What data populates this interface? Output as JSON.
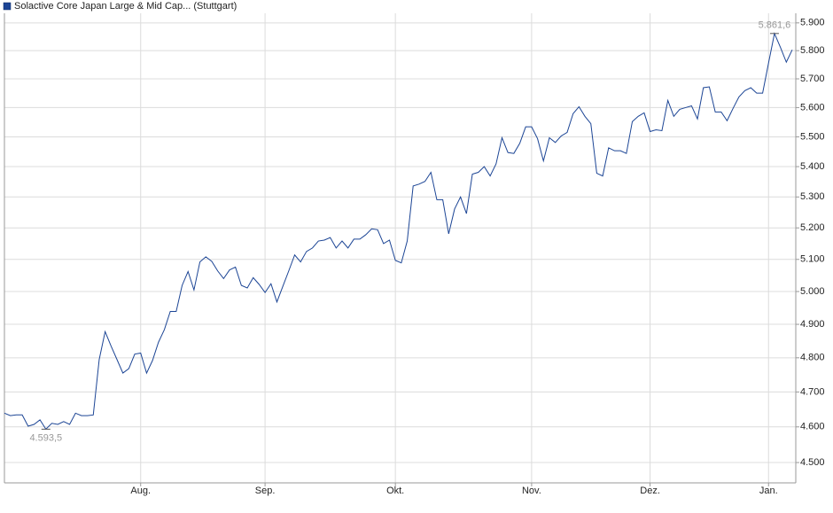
{
  "chart_data": {
    "type": "line",
    "log_scale": true,
    "grid": true,
    "legend_position": "top-left",
    "series": [
      {
        "name": "Solactive Core Japan Large & Mid Cap... (Stuttgart)",
        "color": "#1c4595",
        "values": [
          4639,
          4632,
          4634,
          4634,
          4602,
          4607,
          4620,
          4593.5,
          4610,
          4607,
          4615,
          4607,
          4639,
          4632,
          4632,
          4634,
          4795,
          4878,
          4835,
          4795,
          4755,
          4768,
          4811,
          4814,
          4755,
          4792,
          4846,
          4884,
          4939,
          4939,
          5019,
          5062,
          5005,
          5092,
          5108,
          5094,
          5064,
          5040,
          5067,
          5076,
          5019,
          5011,
          5043,
          5022,
          4997,
          5024,
          4968,
          5016,
          5064,
          5114,
          5092,
          5125,
          5136,
          5158,
          5161,
          5169,
          5136,
          5158,
          5136,
          5164,
          5164,
          5178,
          5197,
          5194,
          5150,
          5161,
          5097,
          5089,
          5158,
          5336,
          5342,
          5351,
          5381,
          5291,
          5291,
          5181,
          5261,
          5300,
          5246,
          5375,
          5381,
          5400,
          5369,
          5409,
          5497,
          5447,
          5444,
          5478,
          5534,
          5534,
          5494,
          5419,
          5497,
          5481,
          5503,
          5515,
          5579,
          5603,
          5570,
          5545,
          5378,
          5369,
          5463,
          5453,
          5453,
          5444,
          5552,
          5570,
          5582,
          5518,
          5524,
          5521,
          5625,
          5570,
          5594,
          5600,
          5606,
          5561,
          5669,
          5672,
          5585,
          5585,
          5555,
          5597,
          5637,
          5659,
          5669,
          5650,
          5650,
          5756,
          5861.6,
          5812,
          5759,
          5803
        ],
        "value_labels": [
          null,
          null,
          null,
          null,
          null,
          null,
          null,
          "4.593,5",
          null,
          null,
          null,
          null,
          null,
          null,
          null,
          null,
          null,
          null,
          null,
          null,
          null,
          null,
          null,
          null,
          null,
          null,
          null,
          null,
          null,
          null,
          null,
          null,
          null,
          null,
          null,
          null,
          null,
          null,
          null,
          null,
          null,
          null,
          null,
          null,
          null,
          null,
          null,
          null,
          null,
          null,
          null,
          null,
          null,
          null,
          null,
          null,
          null,
          null,
          null,
          null,
          null,
          null,
          null,
          null,
          null,
          null,
          null,
          null,
          null,
          null,
          null,
          null,
          null,
          null,
          null,
          null,
          null,
          null,
          null,
          null,
          null,
          null,
          null,
          null,
          null,
          null,
          null,
          null,
          null,
          null,
          null,
          null,
          null,
          null,
          null,
          null,
          null,
          null,
          null,
          null,
          null,
          null,
          null,
          null,
          null,
          null,
          null,
          null,
          null,
          null,
          null,
          null,
          null,
          null,
          null,
          null,
          null,
          null,
          null,
          null,
          null,
          null,
          null,
          null,
          null,
          null,
          null,
          null,
          null,
          null,
          "5.861,6",
          null,
          null,
          null
        ]
      }
    ],
    "categories": [
      null,
      null,
      null,
      null,
      null,
      null,
      null,
      null,
      null,
      null,
      null,
      null,
      null,
      null,
      null,
      null,
      null,
      null,
      null,
      null,
      null,
      null,
      null,
      "Aug.",
      null,
      null,
      null,
      null,
      null,
      null,
      null,
      null,
      null,
      null,
      null,
      null,
      null,
      null,
      null,
      null,
      null,
      null,
      null,
      null,
      "Sep.",
      null,
      null,
      null,
      null,
      null,
      null,
      null,
      null,
      null,
      null,
      null,
      null,
      null,
      null,
      null,
      null,
      null,
      null,
      null,
      null,
      null,
      "Okt.",
      null,
      null,
      null,
      null,
      null,
      null,
      null,
      null,
      null,
      null,
      null,
      null,
      null,
      null,
      null,
      null,
      null,
      null,
      null,
      null,
      null,
      null,
      "Nov.",
      null,
      null,
      null,
      null,
      null,
      null,
      null,
      null,
      null,
      null,
      null,
      null,
      null,
      null,
      null,
      null,
      null,
      null,
      null,
      "Dez.",
      null,
      null,
      null,
      null,
      null,
      null,
      null,
      null,
      null,
      null,
      null,
      null,
      null,
      null,
      null,
      null,
      null,
      null,
      null,
      "Jan.",
      null,
      null,
      null,
      null
    ],
    "ylim": [
      4444,
      5935
    ],
    "yticks": [
      {
        "value": 4500,
        "label": "4.500"
      },
      {
        "value": 4600,
        "label": "4.600"
      },
      {
        "value": 4700,
        "label": "4.700"
      },
      {
        "value": 4800,
        "label": "4.800"
      },
      {
        "value": 4900,
        "label": "4.900"
      },
      {
        "value": 5000,
        "label": "5.000"
      },
      {
        "value": 5100,
        "label": "5.100"
      },
      {
        "value": 5200,
        "label": "5.200"
      },
      {
        "value": 5300,
        "label": "5.300"
      },
      {
        "value": 5400,
        "label": "5.400"
      },
      {
        "value": 5500,
        "label": "5.500"
      },
      {
        "value": 5600,
        "label": "5.600"
      },
      {
        "value": 5700,
        "label": "5.700"
      },
      {
        "value": 5800,
        "label": "5.800"
      },
      {
        "value": 5900,
        "label": "5.900"
      }
    ]
  }
}
